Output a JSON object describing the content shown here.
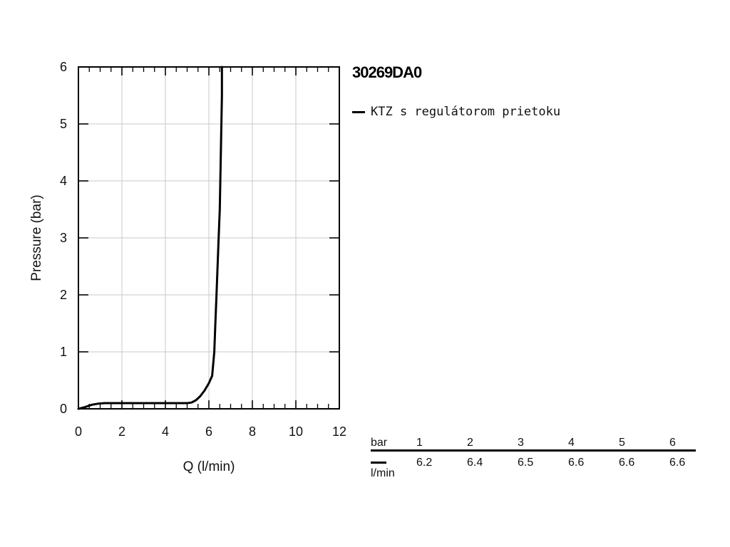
{
  "chart_data": {
    "type": "line",
    "title": "30269DA0",
    "xlabel": "Q (l/min)",
    "ylabel": "Pressure (bar)",
    "xlim": [
      0,
      12
    ],
    "ylim": [
      0,
      6
    ],
    "x_ticks": [
      0,
      2,
      4,
      6,
      8,
      10,
      12
    ],
    "y_ticks": [
      0,
      1,
      2,
      3,
      4,
      5,
      6
    ],
    "grid": true,
    "legend_position": "top-right (outside)",
    "series": [
      {
        "name": "KTZ s regulátorom prietoku",
        "color": "#000000",
        "x": [
          0,
          0.3,
          0.6,
          0.9,
          1.2,
          2,
          3,
          4,
          5,
          5.2,
          5.4,
          5.6,
          5.8,
          6.0,
          6.15,
          6.25,
          6.3,
          6.35,
          6.4,
          6.45,
          6.5,
          6.55,
          6.6,
          6.6
        ],
        "y": [
          0,
          0.03,
          0.07,
          0.09,
          0.1,
          0.1,
          0.1,
          0.1,
          0.1,
          0.11,
          0.15,
          0.22,
          0.32,
          0.45,
          0.58,
          1.0,
          1.5,
          2.0,
          2.5,
          3.0,
          3.5,
          4.5,
          5.5,
          6
        ]
      }
    ]
  },
  "flow_table": {
    "unit_top": "bar",
    "unit_bottom": "l/min",
    "columns": [
      {
        "bar": "1",
        "flow": "6.2"
      },
      {
        "bar": "2",
        "flow": "6.4"
      },
      {
        "bar": "3",
        "flow": "6.5"
      },
      {
        "bar": "4",
        "flow": "6.6"
      },
      {
        "bar": "5",
        "flow": "6.6"
      },
      {
        "bar": "6",
        "flow": "6.6"
      }
    ]
  }
}
